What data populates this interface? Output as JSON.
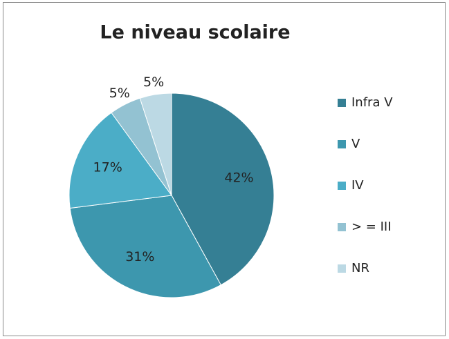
{
  "chart_data": {
    "type": "pie",
    "title": "Le niveau scolaire",
    "categories": [
      "Infra V",
      "V",
      "IV",
      "> = III",
      "NR"
    ],
    "values": [
      42,
      31,
      17,
      5,
      5
    ],
    "value_labels": [
      "42%",
      "31%",
      "17%",
      "5%",
      "5%"
    ],
    "colors": [
      "#357f94",
      "#3d97ae",
      "#4badc7",
      "#93c2d2",
      "#bcd9e4"
    ],
    "legend": "right"
  }
}
